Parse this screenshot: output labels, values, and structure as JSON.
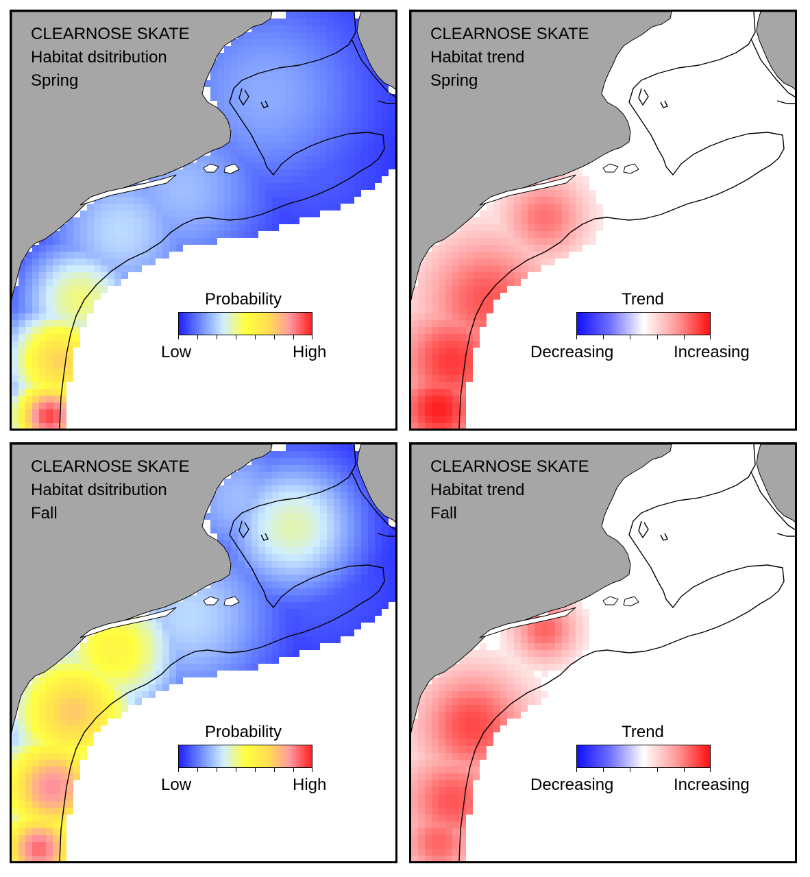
{
  "colors": {
    "land": "#a6a6a6",
    "outline": "#000000",
    "probability_ramp": [
      "#1f1fff",
      "#6f8cff",
      "#cfeeff",
      "#ffff40",
      "#ffe050",
      "#ff9aa0",
      "#ff2020"
    ],
    "trend_ramp": [
      "#1010ff",
      "#7070ff",
      "#ffffff",
      "#ff9a9a",
      "#ff1010"
    ]
  },
  "panels": [
    {
      "id": "spring-distribution",
      "lines": [
        "CLEARNOSE SKATE",
        "Habitat dsitribution",
        "Spring"
      ],
      "legend": {
        "title": "Probability",
        "low": "Low",
        "high": "High",
        "kind": "probability"
      },
      "season": "spring",
      "kind": "distribution"
    },
    {
      "id": "spring-trend",
      "lines": [
        "CLEARNOSE SKATE",
        "Habitat trend",
        "Spring"
      ],
      "legend": {
        "title": "Trend",
        "low": "Decreasing",
        "high": "Increasing",
        "kind": "trend"
      },
      "season": "spring",
      "kind": "trend"
    },
    {
      "id": "fall-distribution",
      "lines": [
        "CLEARNOSE SKATE",
        "Habitat dsitribution",
        "Fall"
      ],
      "legend": {
        "title": "Probability",
        "low": "Low",
        "high": "High",
        "kind": "probability"
      },
      "season": "fall",
      "kind": "distribution"
    },
    {
      "id": "fall-trend",
      "lines": [
        "CLEARNOSE SKATE",
        "Habitat trend",
        "Fall"
      ],
      "legend": {
        "title": "Trend",
        "low": "Decreasing",
        "high": "Increasing",
        "kind": "trend"
      },
      "season": "fall",
      "kind": "trend"
    }
  ]
}
